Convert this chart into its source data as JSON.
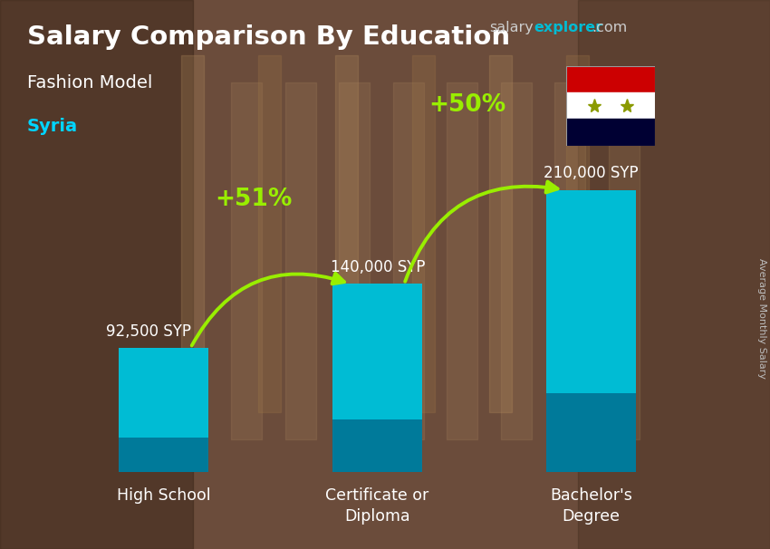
{
  "title": "Salary Comparison By Education",
  "subtitle": "Fashion Model",
  "country": "Syria",
  "ylabel": "Average Monthly Salary",
  "categories": [
    "High School",
    "Certificate or\nDiploma",
    "Bachelor's\nDegree"
  ],
  "values": [
    92500,
    140000,
    210000
  ],
  "value_labels": [
    "92,500 SYP",
    "140,000 SYP",
    "210,000 SYP"
  ],
  "pct_labels": [
    "+51%",
    "+50%"
  ],
  "bar_color": "#00bcd4",
  "bar_color_dark": "#007a9a",
  "bg_color": "#6b4c3b",
  "bg_overlay": "#7a6055",
  "title_color": "#ffffff",
  "subtitle_color": "#ffffff",
  "country_color": "#00d4ff",
  "value_label_color": "#ffffff",
  "pct_color": "#99ee00",
  "arrow_color": "#99ee00",
  "watermark_color1": "#cccccc",
  "watermark_color2": "#00bcd4",
  "flag_red": "#cc0001",
  "flag_white": "#ffffff",
  "flag_black": "#000033",
  "flag_star": "#8a9a00",
  "figsize": [
    8.5,
    6.06
  ],
  "dpi": 100
}
